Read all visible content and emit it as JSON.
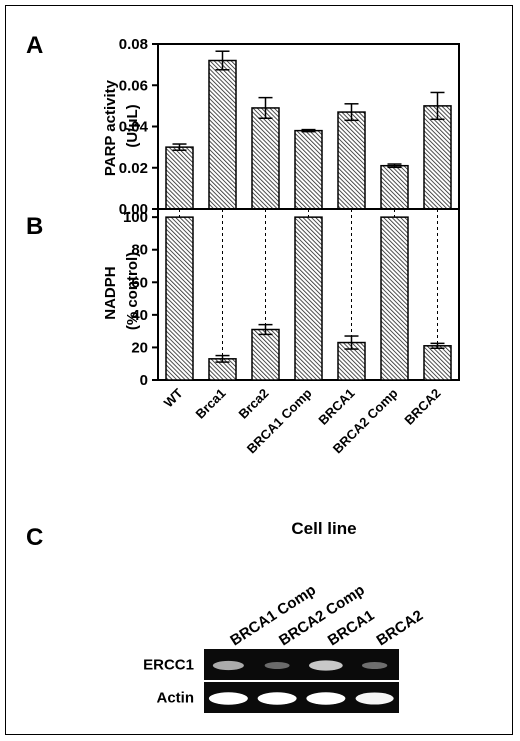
{
  "panels": {
    "a": "A",
    "b": "B",
    "c": "C"
  },
  "chart_data": [
    {
      "panel": "A",
      "type": "bar",
      "ylabel_lines": [
        "PARP activity",
        "(U/μL)"
      ],
      "categories": [
        "WT",
        "Brca1",
        "Brca2",
        "BRCA1 Comp",
        "BRCA1",
        "BRCA2 Comp",
        "BRCA2"
      ],
      "values": [
        0.03,
        0.072,
        0.049,
        0.038,
        0.047,
        0.021,
        0.05
      ],
      "errors": [
        0.0015,
        0.0045,
        0.005,
        0.0005,
        0.004,
        0.0008,
        0.0065
      ],
      "ylim": [
        0,
        0.08
      ],
      "yticks": [
        "0.00",
        "0.02",
        "0.04",
        "0.06",
        "0.08"
      ],
      "grid": false
    },
    {
      "panel": "B",
      "type": "bar",
      "ylabel_lines": [
        "NADPH",
        "(% control)"
      ],
      "categories": [
        "WT",
        "Brca1",
        "Brca2",
        "BRCA1 Comp",
        "BRCA1",
        "BRCA2 Comp",
        "BRCA2"
      ],
      "values": [
        100,
        13,
        31,
        100,
        23,
        100,
        21
      ],
      "errors": [
        0,
        2,
        3,
        0,
        4,
        0,
        1.5
      ],
      "ylim": [
        0,
        105
      ],
      "yticks": [
        "0",
        "20",
        "40",
        "60",
        "80",
        "100"
      ],
      "grid": false
    }
  ],
  "blot": {
    "title": "Cell line",
    "lanes": [
      "BRCA1 Comp",
      "BRCA2 Comp",
      "BRCA1",
      "BRCA2"
    ],
    "rows": [
      {
        "label": "ERCC1",
        "intensities": [
          0.55,
          0.2,
          0.7,
          0.22
        ]
      },
      {
        "label": "Actin",
        "intensities": [
          1.0,
          1.0,
          1.0,
          0.95
        ]
      }
    ]
  }
}
